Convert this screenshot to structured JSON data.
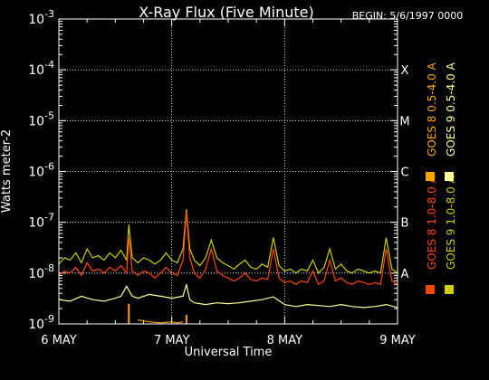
{
  "chart_data": {
    "type": "line",
    "title": "X-Ray Flux (Five Minute)",
    "begin_label": "BEGIN: 5/6/1997 0000",
    "xlabel": "Universal Time",
    "ylabel": "Watts meter-2",
    "x_ticks": [
      "6 MAY",
      "7 MAY",
      "8 MAY",
      "9 MAY"
    ],
    "x_range_days": [
      0,
      3
    ],
    "y_scale": "log",
    "y_ticks": [
      {
        "base": "10",
        "exp": "-3",
        "value": 0.001
      },
      {
        "base": "10",
        "exp": "-4",
        "value": 0.0001
      },
      {
        "base": "10",
        "exp": "-5",
        "value": 1e-05
      },
      {
        "base": "10",
        "exp": "-6",
        "value": 1e-06
      },
      {
        "base": "10",
        "exp": "-7",
        "value": 1e-07
      },
      {
        "base": "10",
        "exp": "-8",
        "value": 1e-08
      },
      {
        "base": "10",
        "exp": "-9",
        "value": 1e-09
      }
    ],
    "ylim": [
      1e-09,
      0.001
    ],
    "flare_classes": [
      {
        "label": "X",
        "value": 0.0001
      },
      {
        "label": "M",
        "value": 1e-05
      },
      {
        "label": "C",
        "value": 1e-06
      },
      {
        "label": "B",
        "value": 1e-07
      },
      {
        "label": "A",
        "value": 1e-08
      }
    ],
    "legend": [
      {
        "name": "GOES 8 1.0-8.0 A",
        "color": "#ff4500"
      },
      {
        "name": "GOES 8 0.5-4.0 A",
        "color": "#ffa500"
      },
      {
        "name": "GOES 9 1.0-8.0 A",
        "color": "#cccc00"
      },
      {
        "name": "GOES 9 0.5-4.0 A",
        "color": "#ffff99"
      }
    ],
    "series": [
      {
        "name": "GOES 9 1.0-8.0 A",
        "color": "#cccc00",
        "x": [
          0,
          0.05,
          0.1,
          0.15,
          0.2,
          0.25,
          0.3,
          0.35,
          0.4,
          0.45,
          0.5,
          0.55,
          0.6,
          0.62,
          0.65,
          0.7,
          0.75,
          0.8,
          0.85,
          0.9,
          0.95,
          1.0,
          1.05,
          1.1,
          1.13,
          1.16,
          1.2,
          1.25,
          1.3,
          1.35,
          1.4,
          1.45,
          1.5,
          1.55,
          1.6,
          1.65,
          1.7,
          1.75,
          1.8,
          1.85,
          1.9,
          1.95,
          2.0,
          2.05,
          2.1,
          2.15,
          2.2,
          2.25,
          2.3,
          2.35,
          2.4,
          2.45,
          2.5,
          2.55,
          2.6,
          2.65,
          2.7,
          2.75,
          2.8,
          2.85,
          2.9,
          2.95,
          3.0
        ],
        "y": [
          1.5e-08,
          2e-08,
          1.8e-08,
          2.5e-08,
          1.6e-08,
          3e-08,
          2e-08,
          2.2e-08,
          1.8e-08,
          2.5e-08,
          2e-08,
          2.8e-08,
          1.8e-08,
          9e-08,
          2e-08,
          1.6e-08,
          2e-08,
          1.8e-08,
          1.5e-08,
          1.8e-08,
          2.5e-08,
          1.8e-08,
          1.6e-08,
          3e-08,
          1.8e-07,
          3e-08,
          1.8e-08,
          1.4e-08,
          2e-08,
          4.5e-08,
          2e-08,
          1.6e-08,
          1.4e-08,
          1.2e-08,
          1.5e-08,
          1.8e-08,
          1.3e-08,
          1.2e-08,
          1.5e-08,
          1.3e-08,
          5e-08,
          1.4e-08,
          1.1e-08,
          1.2e-08,
          1e-08,
          1.2e-08,
          1.1e-08,
          1.8e-08,
          1e-08,
          1.3e-08,
          3e-08,
          1.2e-08,
          1.5e-08,
          1.1e-08,
          1e-08,
          1.2e-08,
          1.1e-08,
          1e-08,
          1.1e-08,
          1e-08,
          5e-08,
          1.2e-08,
          1e-08
        ]
      },
      {
        "name": "GOES 8 1.0-8.0 A",
        "color": "#ff4500",
        "x": [
          0,
          0.05,
          0.1,
          0.15,
          0.2,
          0.25,
          0.3,
          0.35,
          0.4,
          0.45,
          0.5,
          0.55,
          0.6,
          0.62,
          0.65,
          0.7,
          0.75,
          0.8,
          0.85,
          0.9,
          0.95,
          1.0,
          1.05,
          1.1,
          1.13,
          1.16,
          1.2,
          1.25,
          1.3,
          1.35,
          1.4,
          1.45,
          1.5,
          1.55,
          1.6,
          1.65,
          1.7,
          1.75,
          1.8,
          1.85,
          1.9,
          1.95,
          2.0,
          2.05,
          2.1,
          2.15,
          2.2,
          2.25,
          2.3,
          2.35,
          2.4,
          2.45,
          2.5,
          2.55,
          2.6,
          2.65,
          2.7,
          2.75,
          2.8,
          2.85,
          2.9,
          2.95,
          3.0
        ],
        "y": [
          9e-09,
          1.1e-08,
          1e-08,
          1.3e-08,
          9e-09,
          1.6e-08,
          1.1e-08,
          1.2e-08,
          1e-08,
          1.3e-08,
          1.1e-08,
          1.4e-08,
          1e-08,
          5e-08,
          1.1e-08,
          9e-09,
          1.1e-08,
          1e-08,
          8e-09,
          1e-08,
          1.3e-08,
          1e-08,
          9e-09,
          1.8e-08,
          1.6e-07,
          2e-08,
          1e-08,
          8e-09,
          1.2e-08,
          3e-08,
          1.1e-08,
          9e-09,
          8e-09,
          7e-09,
          8e-09,
          1e-08,
          7.5e-09,
          7e-09,
          8e-09,
          7.5e-09,
          3e-08,
          8e-09,
          6.5e-09,
          7e-09,
          6e-09,
          7e-09,
          6.5e-09,
          1.1e-08,
          6e-09,
          7e-09,
          1.8e-08,
          7e-09,
          8e-09,
          6.5e-09,
          6e-09,
          7e-09,
          6.5e-09,
          6e-09,
          6.5e-09,
          6e-09,
          3e-08,
          7e-09,
          6e-09
        ]
      },
      {
        "name": "GOES 9 0.5-4.0 A",
        "color": "#ffff99",
        "x": [
          0,
          0.1,
          0.2,
          0.3,
          0.4,
          0.5,
          0.55,
          0.6,
          0.65,
          0.7,
          0.8,
          0.9,
          1.0,
          1.1,
          1.13,
          1.16,
          1.2,
          1.3,
          1.4,
          1.5,
          1.6,
          1.7,
          1.8,
          1.9,
          2.0,
          2.1,
          2.2,
          2.3,
          2.4,
          2.5,
          2.6,
          2.7,
          2.8,
          2.9,
          3.0
        ],
        "y": [
          3e-09,
          2.8e-09,
          3.5e-09,
          3e-09,
          2.8e-09,
          3.2e-09,
          3.5e-09,
          5.5e-09,
          3.5e-09,
          3.2e-09,
          3.8e-09,
          3.5e-09,
          3.2e-09,
          3.5e-09,
          6e-09,
          3e-09,
          2.6e-09,
          2.4e-09,
          2.6e-09,
          2.5e-09,
          2.6e-09,
          2.8e-09,
          3e-09,
          3.4e-09,
          2.4e-09,
          2.2e-09,
          2.4e-09,
          2.3e-09,
          2.2e-09,
          2.4e-09,
          2.2e-09,
          2.1e-09,
          2.2e-09,
          2.4e-09,
          2.1e-09
        ]
      },
      {
        "name": "GOES 8 0.5-4.0 A",
        "color": "#ffa500",
        "x": [
          0.7,
          0.8,
          0.9,
          1.0,
          1.05,
          1.1
        ],
        "y": [
          1.2e-09,
          1.1e-09,
          1.05e-09,
          1.1e-09,
          1.05e-09,
          1.1e-09
        ]
      }
    ],
    "spikes": [
      {
        "series": "GOES 8 0.5-4.0 A",
        "x": 0.62,
        "y_top": 2.5e-09
      },
      {
        "series": "GOES 8 0.5-4.0 A",
        "x": 1.13,
        "y_top": 1.5e-09
      }
    ]
  }
}
